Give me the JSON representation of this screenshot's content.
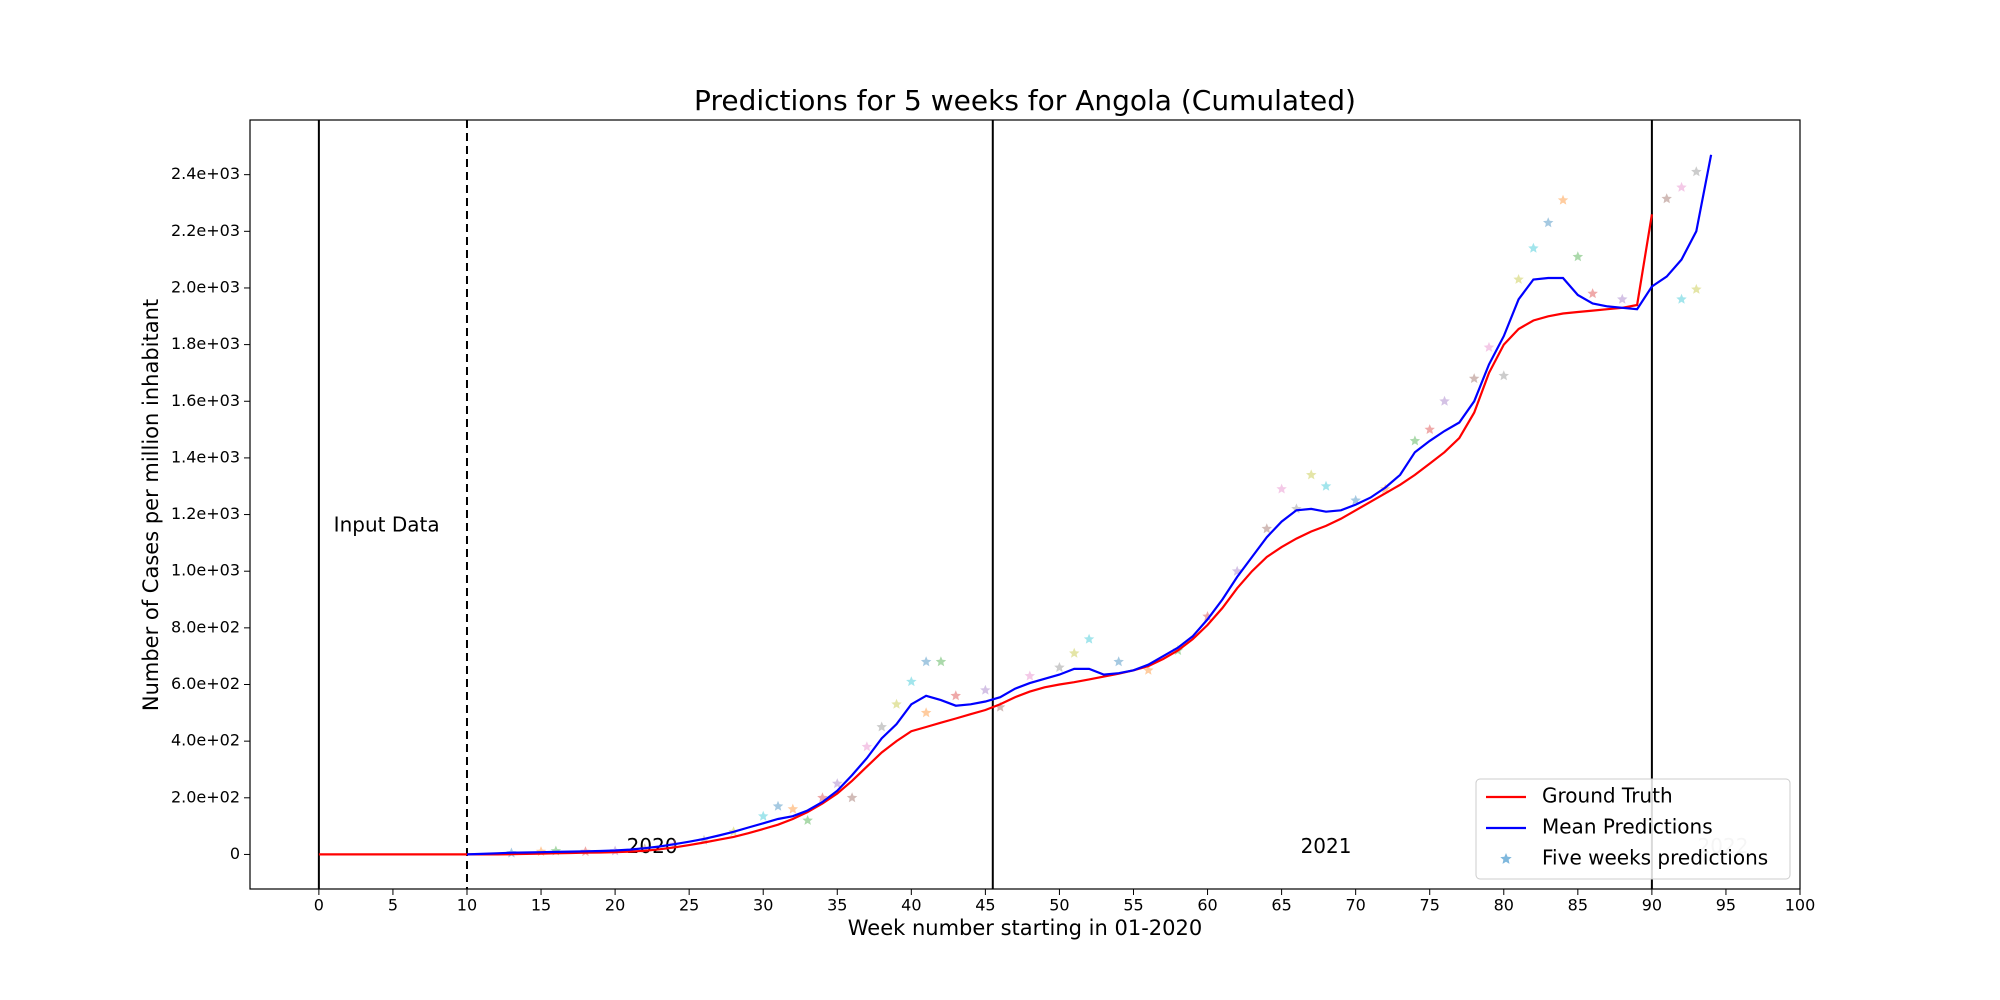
{
  "chart_data": {
    "type": "line",
    "title": "Predictions for 5 weeks for Angola (Cumulated)",
    "x_label": "Week number starting in 01-2020",
    "y_label": "Number of Cases per million inhabitant",
    "xlim": [
      -4.65,
      100
    ],
    "ylim": [
      -122,
      2593
    ],
    "xticks": [
      0,
      5,
      10,
      15,
      20,
      25,
      30,
      35,
      40,
      45,
      50,
      55,
      60,
      65,
      70,
      75,
      80,
      85,
      90,
      95,
      100
    ],
    "yticks": [
      0,
      {
        "value": 200,
        "label": "2.0e+02"
      },
      {
        "value": 400,
        "label": "4.0e+02"
      },
      {
        "value": 600,
        "label": "6.0e+02"
      },
      {
        "value": 800,
        "label": "8.0e+02"
      },
      {
        "value": 1000,
        "label": "1.0e+03"
      },
      {
        "value": 1200,
        "label": "1.2e+03"
      },
      {
        "value": 1400,
        "label": "1.4e+03"
      },
      {
        "value": 1600,
        "label": "1.6e+03"
      },
      {
        "value": 1800,
        "label": "1.8e+03"
      },
      {
        "value": 2000,
        "label": "2.0e+03"
      },
      {
        "value": 2200,
        "label": "2.2e+03"
      },
      {
        "value": 2400,
        "label": "2.4e+03"
      }
    ],
    "vlines": [
      {
        "x": 0,
        "style": "solid"
      },
      {
        "x": 10,
        "style": "dashed"
      },
      {
        "x": 45.5,
        "style": "solid"
      },
      {
        "x": 90,
        "style": "solid"
      }
    ],
    "annotations": [
      "Input Data",
      "2020",
      "2021",
      "2022"
    ],
    "legend": "lower right",
    "series": [
      {
        "name": "Ground Truth",
        "color": "#ff0000",
        "kind": "line",
        "x": [
          0,
          1,
          2,
          3,
          4,
          5,
          6,
          7,
          8,
          9,
          10,
          11,
          12,
          13,
          14,
          15,
          16,
          17,
          18,
          19,
          20,
          21,
          22,
          23,
          24,
          25,
          26,
          27,
          28,
          29,
          30,
          31,
          32,
          33,
          34,
          35,
          36,
          37,
          38,
          39,
          40,
          41,
          42,
          43,
          44,
          45,
          46,
          47,
          48,
          49,
          50,
          51,
          52,
          53,
          54,
          55,
          56,
          57,
          58,
          59,
          60,
          61,
          62,
          63,
          64,
          65,
          66,
          67,
          68,
          69,
          70,
          71,
          72,
          73,
          74,
          75,
          76,
          77,
          78,
          79,
          80,
          81,
          82,
          83,
          84,
          85,
          86,
          87,
          88,
          89,
          90
        ],
        "values": [
          0,
          0,
          0,
          0,
          0,
          0,
          0,
          0,
          0,
          0,
          0,
          0,
          0,
          1,
          2,
          3,
          4,
          5,
          6,
          7,
          8,
          10,
          13,
          18,
          25,
          33,
          42,
          52,
          62,
          75,
          90,
          105,
          125,
          150,
          180,
          215,
          260,
          310,
          360,
          400,
          435,
          450,
          465,
          480,
          495,
          510,
          530,
          555,
          575,
          590,
          600,
          608,
          618,
          628,
          638,
          650,
          665,
          690,
          720,
          760,
          810,
          870,
          940,
          1000,
          1050,
          1085,
          1115,
          1140,
          1160,
          1185,
          1215,
          1245,
          1275,
          1305,
          1340,
          1380,
          1420,
          1470,
          1560,
          1700,
          1800,
          1855,
          1885,
          1900,
          1910,
          1915,
          1920,
          1925,
          1930,
          1940,
          2260
        ]
      },
      {
        "name": "Mean Predictions",
        "color": "#0000ff",
        "kind": "line",
        "x": [
          10,
          11,
          12,
          13,
          14,
          15,
          16,
          17,
          18,
          19,
          20,
          21,
          22,
          23,
          24,
          25,
          26,
          27,
          28,
          29,
          30,
          31,
          32,
          33,
          34,
          35,
          36,
          37,
          38,
          39,
          40,
          41,
          42,
          43,
          44,
          45,
          46,
          47,
          48,
          49,
          50,
          51,
          52,
          53,
          54,
          55,
          56,
          57,
          58,
          59,
          60,
          61,
          62,
          63,
          64,
          65,
          66,
          67,
          68,
          69,
          70,
          71,
          72,
          73,
          74,
          75,
          76,
          77,
          78,
          79,
          80,
          81,
          82,
          83,
          84,
          85,
          86,
          87,
          88,
          89,
          90,
          91,
          92,
          93,
          94
        ],
        "values": [
          0,
          2,
          4,
          6,
          7,
          8,
          9,
          10,
          11,
          12,
          14,
          17,
          22,
          28,
          36,
          45,
          55,
          67,
          80,
          95,
          110,
          125,
          135,
          155,
          185,
          225,
          280,
          340,
          410,
          460,
          530,
          560,
          545,
          525,
          530,
          540,
          555,
          585,
          605,
          620,
          635,
          655,
          655,
          635,
          640,
          650,
          670,
          700,
          730,
          770,
          830,
          900,
          980,
          1050,
          1120,
          1175,
          1215,
          1220,
          1210,
          1215,
          1235,
          1260,
          1295,
          1340,
          1420,
          1460,
          1495,
          1525,
          1600,
          1730,
          1830,
          1960,
          2030,
          2035,
          2035,
          1975,
          1945,
          1935,
          1930,
          1925,
          2005,
          2040,
          2100,
          2200,
          2470
        ]
      },
      {
        "name": "Five weeks predictions",
        "color": "#7fb8dd",
        "kind": "scatter",
        "palette": [
          "#1f77b4",
          "#ff7f0e",
          "#2ca02c",
          "#d62728",
          "#9467bd",
          "#8c564b",
          "#e377c2",
          "#7f7f7f",
          "#bcbd22",
          "#17becf"
        ],
        "x": [
          13,
          15,
          16,
          18,
          20,
          22,
          24,
          26,
          28,
          30,
          31,
          32,
          33,
          34,
          35,
          36,
          37,
          38,
          39,
          40,
          41,
          41,
          42,
          43,
          45,
          46,
          48,
          50,
          51,
          52,
          54,
          56,
          58,
          60,
          62,
          64,
          65,
          66,
          67,
          68,
          70,
          72,
          74,
          75,
          76,
          78,
          79,
          80,
          81,
          82,
          83,
          84,
          85,
          86,
          88,
          91,
          92,
          93,
          93,
          92
        ],
        "values": [
          5,
          10,
          12,
          10,
          12,
          20,
          35,
          50,
          80,
          135,
          170,
          160,
          120,
          200,
          250,
          200,
          380,
          450,
          530,
          610,
          680,
          500,
          680,
          560,
          580,
          520,
          630,
          660,
          710,
          760,
          680,
          650,
          720,
          840,
          1000,
          1150,
          1290,
          1220,
          1340,
          1300,
          1250,
          1290,
          1460,
          1500,
          1600,
          1680,
          1790,
          1690,
          2030,
          2140,
          2230,
          2310,
          2110,
          1980,
          1960,
          2315,
          2355,
          2410,
          1995,
          1960
        ]
      }
    ]
  }
}
